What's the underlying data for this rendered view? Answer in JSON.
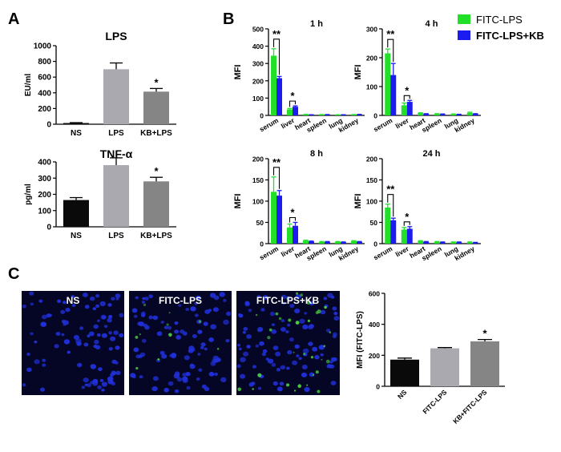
{
  "panels": {
    "A": "A",
    "B": "B",
    "C": "C"
  },
  "colors": {
    "ns": "#0a0a0a",
    "lps": "#a9a9af",
    "kb_lps": "#858585",
    "fitc": "#22e02a",
    "fitc_kb": "#1c1cf0",
    "micro_bg": "#050525",
    "nucleus": "#2030d8",
    "fitc_signal": "#4ccf40"
  },
  "legend": {
    "items": [
      "FITC-LPS",
      "FITC-LPS+KB"
    ]
  },
  "images": {
    "labels": [
      "NS",
      "FITC-LPS",
      "FITC-LPS+KB"
    ]
  },
  "chart_data": [
    {
      "id": "A-LPS",
      "type": "bar",
      "title": "LPS",
      "ylabel": "EU/ml",
      "xlabel": "",
      "ylim": [
        0,
        1000
      ],
      "yticks": [
        0,
        200,
        400,
        600,
        800,
        1000
      ],
      "categories": [
        "NS",
        "LPS",
        "KB+LPS"
      ],
      "values": [
        15,
        700,
        415
      ],
      "errors": [
        5,
        80,
        40
      ],
      "annotations": [
        "",
        "",
        "*"
      ]
    },
    {
      "id": "A-TNF",
      "type": "bar",
      "title": "TNF-α",
      "ylabel": "pg/ml",
      "xlabel": "",
      "ylim": [
        0,
        400
      ],
      "yticks": [
        0,
        100,
        200,
        300,
        400
      ],
      "categories": [
        "NS",
        "LPS",
        "KB+LPS"
      ],
      "values": [
        165,
        380,
        280
      ],
      "errors": [
        15,
        45,
        25
      ],
      "annotations": [
        "",
        "",
        "*"
      ]
    },
    {
      "id": "B-1h",
      "type": "bar",
      "title": "1 h",
      "ylabel": "MFI",
      "xlabel": "",
      "ylim": [
        0,
        500
      ],
      "yticks": [
        0,
        100,
        200,
        300,
        400,
        500
      ],
      "categories": [
        "serum",
        "liver",
        "heart",
        "spleen",
        "lung",
        "kidney"
      ],
      "series": [
        {
          "name": "FITC-LPS",
          "values": [
            345,
            35,
            5,
            4,
            3,
            4
          ],
          "errors": [
            40,
            5,
            1,
            1,
            1,
            1
          ]
        },
        {
          "name": "FITC-LPS+KB",
          "values": [
            215,
            50,
            3,
            4,
            3,
            5
          ],
          "errors": [
            10,
            5,
            1,
            1,
            1,
            1
          ]
        }
      ],
      "annotations": [
        {
          "category": 0,
          "label": "**"
        },
        {
          "category": 1,
          "label": "*"
        }
      ]
    },
    {
      "id": "B-4h",
      "type": "bar",
      "title": "4 h",
      "ylabel": "MFI",
      "xlabel": "",
      "ylim": [
        0,
        300
      ],
      "yticks": [
        0,
        100,
        200,
        300
      ],
      "categories": [
        "serum",
        "liver",
        "heart",
        "spleen",
        "lung",
        "kidney"
      ],
      "series": [
        {
          "name": "FITC-LPS",
          "values": [
            215,
            35,
            8,
            5,
            4,
            9
          ],
          "errors": [
            15,
            8,
            1,
            1,
            1,
            2
          ]
        },
        {
          "name": "FITC-LPS+KB",
          "values": [
            140,
            47,
            5,
            4,
            3,
            5
          ],
          "errors": [
            40,
            5,
            1,
            1,
            1,
            1
          ]
        }
      ],
      "annotations": [
        {
          "category": 0,
          "label": "**"
        },
        {
          "category": 1,
          "label": "*"
        }
      ]
    },
    {
      "id": "B-8h",
      "type": "bar",
      "title": "8 h",
      "ylabel": "MFI",
      "xlabel": "",
      "ylim": [
        0,
        200
      ],
      "yticks": [
        0,
        50,
        100,
        150,
        200
      ],
      "categories": [
        "serum",
        "liver",
        "heart",
        "spleen",
        "lung",
        "kidney"
      ],
      "series": [
        {
          "name": "FITC-LPS",
          "values": [
            122,
            38,
            7,
            4,
            4,
            6
          ],
          "errors": [
            35,
            8,
            1,
            1,
            1,
            1
          ]
        },
        {
          "name": "FITC-LPS+KB",
          "values": [
            113,
            42,
            5,
            4,
            3,
            4
          ],
          "errors": [
            12,
            8,
            1,
            1,
            1,
            1
          ]
        }
      ],
      "annotations": [
        {
          "category": 0,
          "label": "**"
        },
        {
          "category": 1,
          "label": "*"
        }
      ]
    },
    {
      "id": "B-24h",
      "type": "bar",
      "title": "24 h",
      "ylabel": "MFI",
      "xlabel": "",
      "ylim": [
        0,
        200
      ],
      "yticks": [
        0,
        50,
        100,
        150,
        200
      ],
      "categories": [
        "serum",
        "liver",
        "heart",
        "spleen",
        "lung",
        "kidney"
      ],
      "series": [
        {
          "name": "FITC-LPS",
          "values": [
            85,
            33,
            6,
            4,
            3,
            3
          ],
          "errors": [
            8,
            5,
            1,
            1,
            1,
            1
          ]
        },
        {
          "name": "FITC-LPS+KB",
          "values": [
            55,
            35,
            4,
            3,
            3,
            2
          ],
          "errors": [
            5,
            5,
            1,
            1,
            1,
            1
          ]
        }
      ],
      "annotations": [
        {
          "category": 0,
          "label": "**"
        },
        {
          "category": 1,
          "label": "*"
        }
      ]
    },
    {
      "id": "C-MFI",
      "type": "bar",
      "title": "",
      "ylabel": "MFI (FITC-LPS)",
      "xlabel": "",
      "ylim": [
        0,
        600
      ],
      "yticks": [
        0,
        200,
        400,
        600
      ],
      "categories": [
        "NS",
        "FITC-LPS",
        "KB+FITC-LPS"
      ],
      "values": [
        172,
        245,
        290
      ],
      "errors": [
        10,
        5,
        12
      ],
      "annotations": [
        "",
        "",
        "*"
      ]
    }
  ]
}
